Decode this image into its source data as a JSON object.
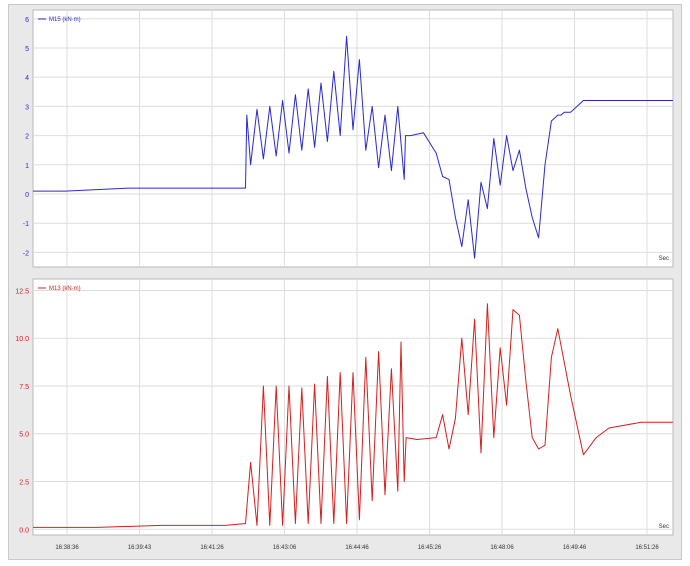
{
  "chart_data": [
    {
      "type": "line",
      "legend": {
        "label": "M15 (kN·m)",
        "placement": "top-left"
      },
      "x_unit_label": "Sec",
      "color": "#2a2acc",
      "yticks": [
        "-2",
        "-1",
        "0",
        "1",
        "2",
        "3",
        "4",
        "5",
        "6"
      ],
      "ylim": [
        -2.5,
        6.3
      ],
      "xlim": [
        0,
        100
      ],
      "grid": true,
      "series": [
        {
          "x": [
            0,
            5,
            10,
            15,
            20,
            25,
            30,
            33.2,
            33.4,
            34,
            35,
            36,
            37,
            38,
            39,
            40,
            41,
            42,
            43,
            44,
            45,
            46,
            47,
            48,
            49,
            50,
            51,
            52,
            53,
            54,
            55,
            56,
            57,
            58,
            58.2,
            59,
            61,
            63,
            64,
            65,
            66,
            67,
            68,
            69,
            70,
            71,
            72,
            73,
            74,
            75,
            76,
            77,
            78,
            79,
            80,
            81,
            82,
            82.5,
            83,
            84,
            86,
            90,
            95,
            100
          ],
          "y": [
            0.1,
            0.1,
            0.15,
            0.2,
            0.2,
            0.2,
            0.2,
            0.2,
            2.7,
            1.0,
            2.9,
            1.2,
            3.0,
            1.3,
            3.2,
            1.4,
            3.4,
            1.5,
            3.6,
            1.6,
            3.8,
            1.8,
            4.2,
            2.0,
            5.4,
            2.2,
            4.6,
            1.5,
            3.0,
            0.9,
            2.7,
            0.8,
            3.0,
            0.5,
            2.0,
            2.0,
            2.1,
            1.4,
            0.6,
            0.5,
            -0.8,
            -1.8,
            -0.2,
            -2.2,
            0.4,
            -0.5,
            1.9,
            0.3,
            2.0,
            0.8,
            1.5,
            0.2,
            -0.8,
            -1.5,
            1.0,
            2.5,
            2.7,
            2.7,
            2.8,
            2.8,
            3.2,
            3.2,
            3.2,
            3.2
          ]
        }
      ]
    },
    {
      "type": "line",
      "legend": {
        "label": "M13 (kN·m)",
        "placement": "top-left"
      },
      "x_unit_label": "Sec",
      "color": "#d22020",
      "yticks": [
        "0.0",
        "2.5",
        "5.0",
        "7.5",
        "10.0",
        "12.5"
      ],
      "ylim": [
        -0.3,
        13.1
      ],
      "xlim": [
        0,
        100
      ],
      "grid": true,
      "xticks": [
        "16:38:36",
        "16:39:43",
        "16:41:26",
        "16:43:06",
        "16:44:46",
        "16:45:26",
        "16:48:06",
        "16:49:46",
        "16:51:26"
      ],
      "series": [
        {
          "x": [
            0,
            10,
            20,
            30,
            33.2,
            34,
            35,
            36,
            37,
            38,
            39,
            40,
            41,
            42,
            43,
            44,
            45,
            46,
            47,
            48,
            49,
            50,
            51,
            52,
            53,
            54,
            55,
            56,
            57,
            57.5,
            58,
            58.3,
            60,
            63,
            64,
            65,
            66,
            67,
            68,
            69,
            70,
            71,
            72,
            73,
            74,
            75,
            76,
            77,
            78,
            79,
            80,
            81,
            82,
            84,
            86,
            88,
            90,
            95,
            100
          ],
          "y": [
            0.1,
            0.1,
            0.2,
            0.2,
            0.3,
            3.5,
            0.2,
            7.5,
            0.2,
            7.5,
            0.2,
            7.5,
            0.3,
            7.4,
            0.3,
            7.6,
            0.3,
            8.0,
            0.3,
            8.2,
            0.3,
            8.2,
            0.5,
            9.0,
            1.5,
            9.3,
            1.8,
            8.4,
            2.0,
            9.8,
            2.5,
            4.8,
            4.7,
            4.8,
            6.0,
            4.2,
            5.8,
            10.0,
            6.0,
            11.0,
            4.0,
            11.8,
            4.8,
            9.5,
            6.5,
            11.5,
            11.2,
            7.8,
            4.8,
            4.2,
            4.4,
            9.0,
            10.5,
            7.0,
            3.9,
            4.8,
            5.3,
            5.6,
            5.6
          ]
        }
      ]
    }
  ]
}
